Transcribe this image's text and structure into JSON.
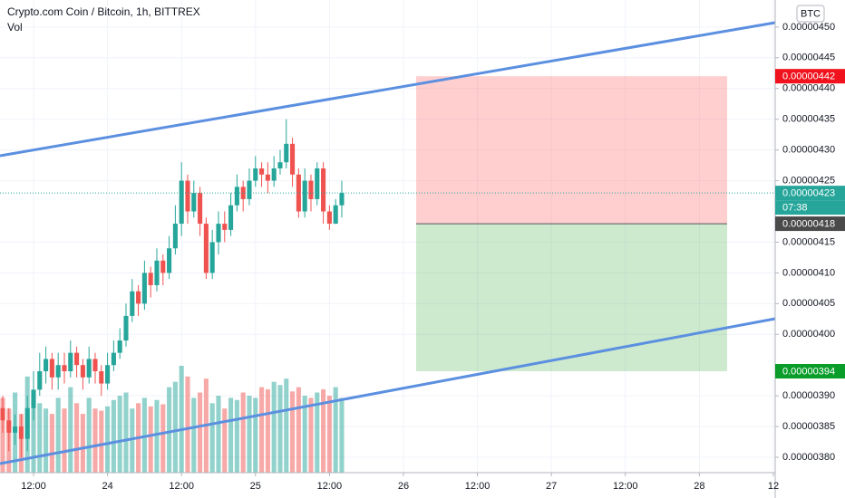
{
  "chart_data": {
    "type": "candlestick",
    "title": "Crypto.com Coin / Bitcoin, 1h, BITTREX",
    "volume_label": "Vol",
    "currency": "BTC",
    "x": [
      0,
      1,
      2,
      3,
      4,
      5,
      6,
      7,
      8,
      9,
      10,
      11,
      12,
      13,
      14,
      15,
      16,
      17,
      18,
      19,
      20,
      21,
      22,
      23,
      24,
      25,
      26,
      27,
      28,
      29,
      30,
      31,
      32,
      33,
      34,
      35,
      36,
      37,
      38,
      39,
      40,
      41,
      42,
      43,
      44,
      45,
      46,
      47,
      48,
      49,
      50,
      51,
      52,
      53,
      54,
      55
    ],
    "open": [
      3.88e-07,
      3.86e-07,
      3.84e-07,
      3.85e-07,
      3.83e-07,
      3.88e-07,
      3.91e-07,
      3.94e-07,
      3.96e-07,
      3.93e-07,
      3.95e-07,
      3.94e-07,
      3.97e-07,
      3.95e-07,
      3.93e-07,
      3.96e-07,
      3.94e-07,
      3.92e-07,
      3.95e-07,
      3.97e-07,
      3.99e-07,
      4.03e-07,
      4.07e-07,
      4.05e-07,
      4.1e-07,
      4.08e-07,
      4.12e-07,
      4.1e-07,
      4.14e-07,
      4.18e-07,
      4.25e-07,
      4.2e-07,
      4.23e-07,
      4.18e-07,
      4.1e-07,
      4.15e-07,
      4.18e-07,
      4.17e-07,
      4.21e-07,
      4.24e-07,
      4.22e-07,
      4.25e-07,
      4.27e-07,
      4.26e-07,
      4.25e-07,
      4.27e-07,
      4.28e-07,
      4.31e-07,
      4.26e-07,
      4.2e-07,
      4.25e-07,
      4.22e-07,
      4.27e-07,
      4.2e-07,
      4.18e-07,
      4.21e-07
    ],
    "high": [
      3.9e-07,
      3.88e-07,
      3.87e-07,
      3.87e-07,
      3.9e-07,
      3.94e-07,
      3.97e-07,
      3.98e-07,
      3.97e-07,
      3.97e-07,
      3.97e-07,
      3.99e-07,
      3.98e-07,
      3.96e-07,
      3.98e-07,
      3.97e-07,
      3.95e-07,
      3.97e-07,
      3.99e-07,
      4.01e-07,
      4.05e-07,
      4.09e-07,
      4.08e-07,
      4.12e-07,
      4.11e-07,
      4.14e-07,
      4.13e-07,
      4.16e-07,
      4.21e-07,
      4.28e-07,
      4.26e-07,
      4.25e-07,
      4.24e-07,
      4.19e-07,
      4.17e-07,
      4.2e-07,
      4.2e-07,
      4.23e-07,
      4.26e-07,
      4.25e-07,
      4.27e-07,
      4.29e-07,
      4.28e-07,
      4.28e-07,
      4.29e-07,
      4.3e-07,
      4.35e-07,
      4.32e-07,
      4.27e-07,
      4.27e-07,
      4.26e-07,
      4.28e-07,
      4.28e-07,
      4.21e-07,
      4.22e-07,
      4.25e-07
    ],
    "low": [
      3.84e-07,
      3.81e-07,
      3.82e-07,
      3.8e-07,
      3.81e-07,
      3.86e-07,
      3.9e-07,
      3.92e-07,
      3.91e-07,
      3.91e-07,
      3.92e-07,
      3.93e-07,
      3.93e-07,
      3.91e-07,
      3.92e-07,
      3.92e-07,
      3.9e-07,
      3.91e-07,
      3.94e-07,
      3.96e-07,
      3.98e-07,
      4.02e-07,
      4.03e-07,
      4.04e-07,
      4.06e-07,
      4.07e-07,
      4.08e-07,
      4.09e-07,
      4.13e-07,
      4.16e-07,
      4.18e-07,
      4.19e-07,
      4.16e-07,
      4.09e-07,
      4.09e-07,
      4.13e-07,
      4.15e-07,
      4.16e-07,
      4.2e-07,
      4.2e-07,
      4.21e-07,
      4.24e-07,
      4.24e-07,
      4.23e-07,
      4.24e-07,
      4.26e-07,
      4.27e-07,
      4.24e-07,
      4.19e-07,
      4.19e-07,
      4.2e-07,
      4.21e-07,
      4.18e-07,
      4.17e-07,
      4.18e-07,
      4.19e-07
    ],
    "close": [
      3.86e-07,
      3.84e-07,
      3.85e-07,
      3.83e-07,
      3.88e-07,
      3.91e-07,
      3.94e-07,
      3.96e-07,
      3.93e-07,
      3.95e-07,
      3.94e-07,
      3.97e-07,
      3.95e-07,
      3.93e-07,
      3.96e-07,
      3.94e-07,
      3.92e-07,
      3.95e-07,
      3.97e-07,
      3.99e-07,
      4.03e-07,
      4.07e-07,
      4.05e-07,
      4.1e-07,
      4.08e-07,
      4.12e-07,
      4.1e-07,
      4.14e-07,
      4.18e-07,
      4.25e-07,
      4.2e-07,
      4.23e-07,
      4.18e-07,
      4.1e-07,
      4.15e-07,
      4.18e-07,
      4.17e-07,
      4.21e-07,
      4.24e-07,
      4.22e-07,
      4.25e-07,
      4.27e-07,
      4.26e-07,
      4.25e-07,
      4.27e-07,
      4.28e-07,
      4.31e-07,
      4.26e-07,
      4.2e-07,
      4.25e-07,
      4.22e-07,
      4.27e-07,
      4.2e-07,
      4.18e-07,
      4.21e-07,
      4.23e-07
    ],
    "volume": [
      70,
      60,
      75,
      55,
      90,
      70,
      65,
      60,
      55,
      70,
      60,
      80,
      65,
      55,
      70,
      60,
      58,
      62,
      68,
      72,
      75,
      60,
      65,
      70,
      62,
      68,
      64,
      80,
      85,
      100,
      90,
      70,
      75,
      88,
      65,
      72,
      60,
      70,
      68,
      75,
      72,
      70,
      80,
      78,
      85,
      82,
      88,
      76,
      80,
      72,
      70,
      75,
      78,
      72,
      80,
      70
    ],
    "up_color": "#26a69a",
    "down_color": "#ef5350",
    "xlim": [
      -0.44,
      125.3
    ],
    "xticks": [
      {
        "value": 5,
        "label": "12:00"
      },
      {
        "value": 17,
        "label": "24"
      },
      {
        "value": 29,
        "label": "12:00"
      },
      {
        "value": 41,
        "label": "25"
      },
      {
        "value": 53,
        "label": "12:00"
      },
      {
        "value": 65,
        "label": "26"
      },
      {
        "value": 77,
        "label": "12:00"
      },
      {
        "value": 89,
        "label": "27"
      },
      {
        "value": 101,
        "label": "12:00"
      },
      {
        "value": 113,
        "label": "28"
      },
      {
        "value": 125,
        "label": "12"
      }
    ],
    "ylim": [
      3.775e-07,
      4.544e-07
    ],
    "yticks": [
      {
        "value": 4.5e-07,
        "label": "0.00000450"
      },
      {
        "value": 4.45e-07,
        "label": "0.00000445"
      },
      {
        "value": 4.4e-07,
        "label": "0.00000440"
      },
      {
        "value": 4.35e-07,
        "label": "0.00000435"
      },
      {
        "value": 4.3e-07,
        "label": "0.00000430"
      },
      {
        "value": 4.25e-07,
        "label": "0.00000425"
      },
      {
        "value": 4.15e-07,
        "label": "0.00000415"
      },
      {
        "value": 4.1e-07,
        "label": "0.00000410"
      },
      {
        "value": 4.05e-07,
        "label": "0.00000405"
      },
      {
        "value": 4e-07,
        "label": "0.00000400"
      },
      {
        "value": 3.9e-07,
        "label": "0.00000390"
      },
      {
        "value": 3.85e-07,
        "label": "0.00000385"
      },
      {
        "value": 3.8e-07,
        "label": "0.00000380"
      }
    ],
    "grid": true,
    "position": {
      "stop": {
        "value": 4.42e-07,
        "label": "0.00000442"
      },
      "entry": {
        "value": 4.18e-07,
        "label": "0.00000418"
      },
      "target": {
        "value": 3.94e-07,
        "label": "0.00000394"
      }
    },
    "last_price": {
      "value": 4.23e-07,
      "label": "0.00000423"
    },
    "countdown": "07:38"
  }
}
